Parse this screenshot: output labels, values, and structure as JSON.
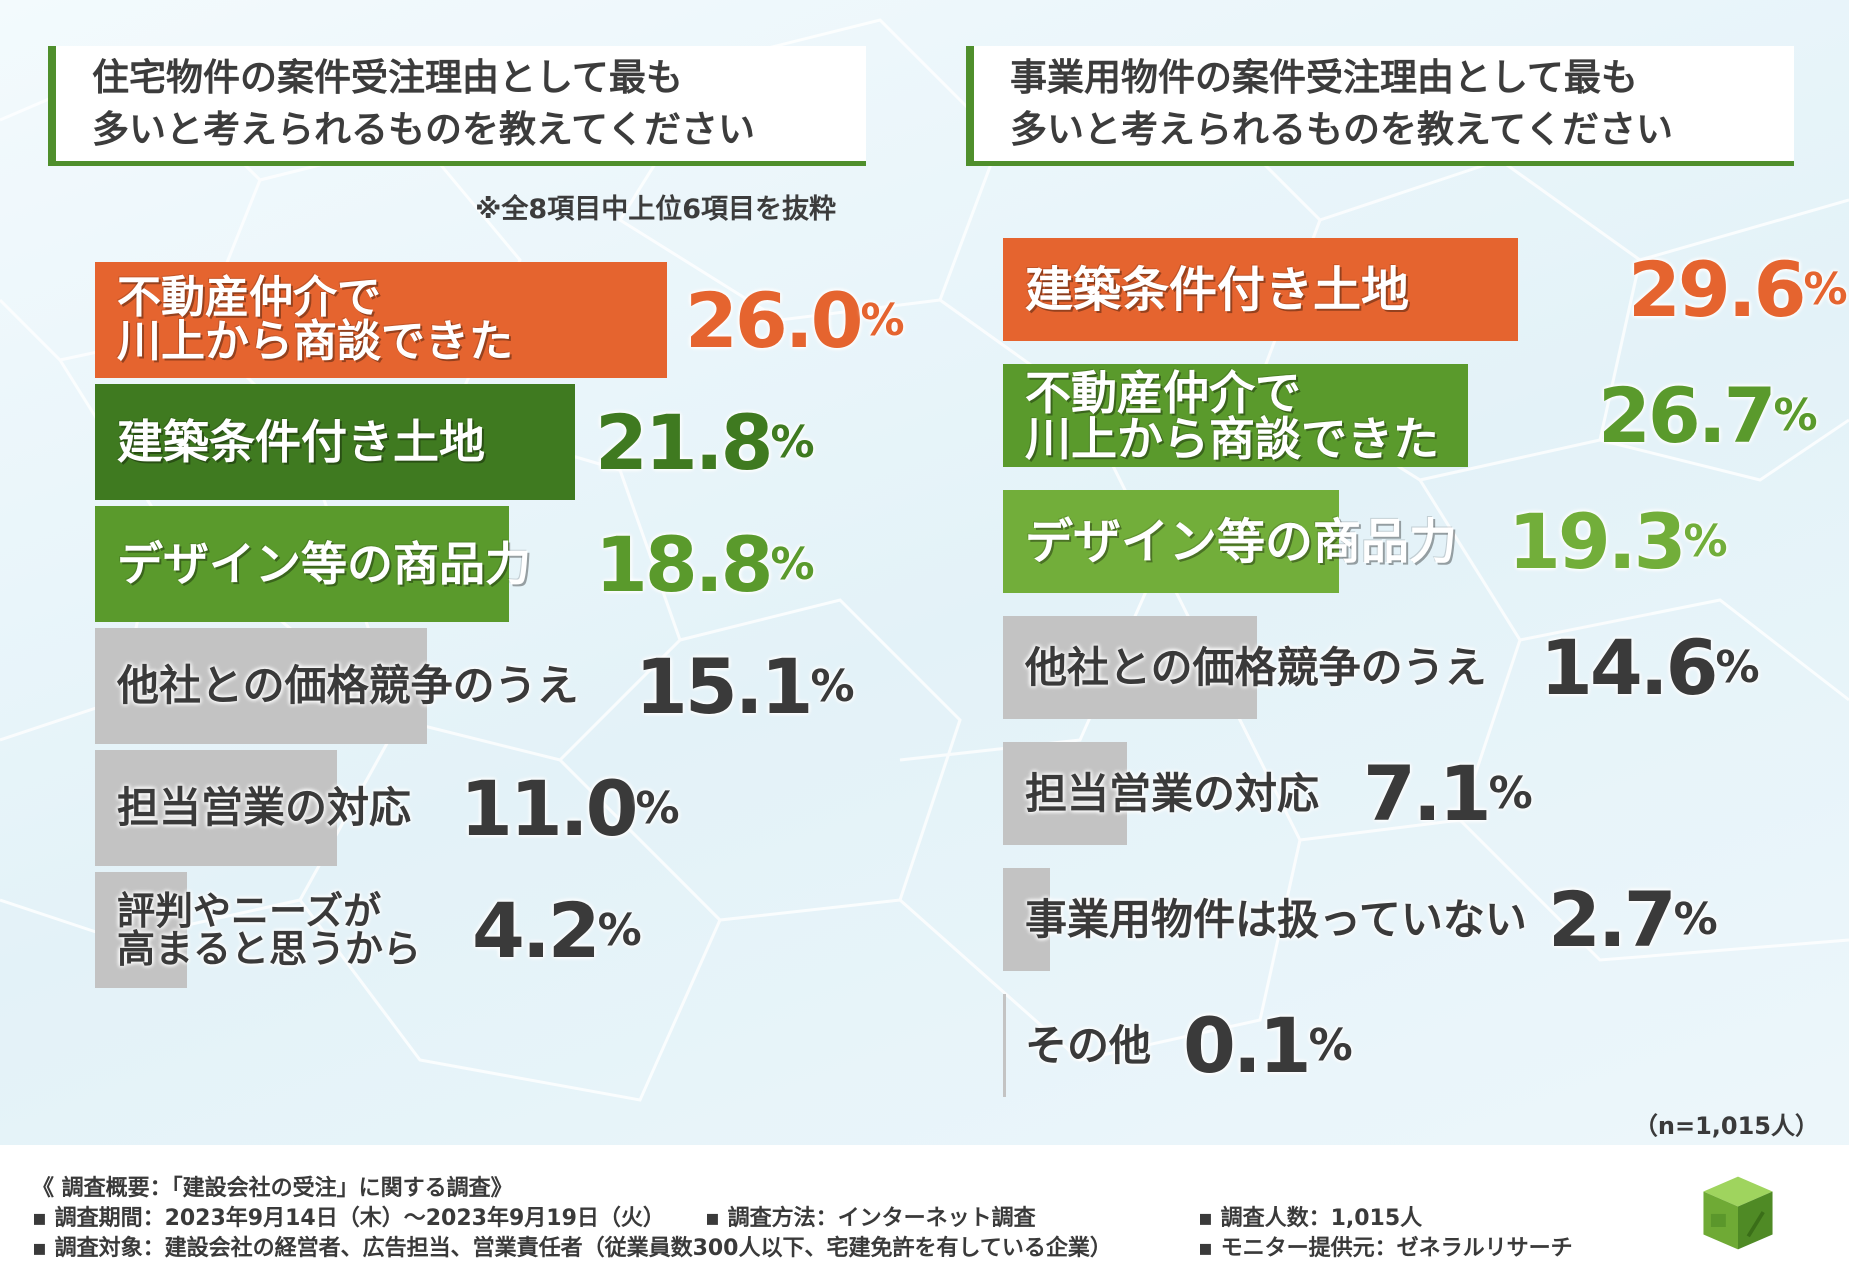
{
  "left": {
    "title_line1": "住宅物件の案件受注理由として最も",
    "title_line2": "多いと考えられるものを教えてください",
    "note": "※全8項目中上位6項目を抜粋"
  },
  "right": {
    "title_line1": "事業用物件の案件受注理由として最も",
    "title_line2": "多いと考えられるものを教えてください"
  },
  "sample_note": "（n=1,015人）",
  "colors": {
    "orange": "#e5642f",
    "dark_green": "#3f7a20",
    "mid_green": "#5a9a2c",
    "light_green": "#72ae3a",
    "gray": "#c3c3c3",
    "orange_text": "#e5642f"
  },
  "chart_data": [
    {
      "type": "bar",
      "orientation": "horizontal",
      "title": "住宅物件の案件受注理由として最も多いと考えられるものを教えてください",
      "unit": "%",
      "categories": [
        [
          "不動産仲介で",
          "川上から商談できた"
        ],
        [
          "建築条件付き土地"
        ],
        [
          "デザイン等の商品力"
        ],
        [
          "他社との価格競争のうえ"
        ],
        [
          "担当営業の対応"
        ],
        [
          "評判やニーズが",
          "高まると思うから"
        ]
      ],
      "values": [
        26.0,
        21.8,
        18.8,
        15.1,
        11.0,
        4.2
      ],
      "value_labels": [
        [
          "26.0",
          "%"
        ],
        [
          "21.8",
          "%"
        ],
        [
          "18.8",
          "%"
        ],
        [
          "15.1",
          "%"
        ],
        [
          "11.0",
          "%"
        ],
        [
          "4.2",
          "%"
        ]
      ],
      "colors": [
        "orange",
        "dark_green",
        "mid_green",
        "gray",
        "gray",
        "gray"
      ]
    },
    {
      "type": "bar",
      "orientation": "horizontal",
      "title": "事業用物件の案件受注理由として最も多いと考えられるものを教えてください",
      "unit": "%",
      "categories": [
        [
          "建築条件付き土地"
        ],
        [
          "不動産仲介で",
          "川上から商談できた"
        ],
        [
          "デザイン等の商品力"
        ],
        [
          "他社との価格競争のうえ"
        ],
        [
          "担当営業の対応"
        ],
        [
          "事業用物件は扱っていない"
        ],
        [
          "その他"
        ]
      ],
      "values": [
        29.6,
        26.7,
        19.3,
        14.6,
        7.1,
        2.7,
        0.1
      ],
      "value_labels": [
        [
          "29.6",
          "%"
        ],
        [
          "26.7",
          "%"
        ],
        [
          "19.3",
          "%"
        ],
        [
          "14.6",
          "%"
        ],
        [
          "7.1",
          "%"
        ],
        [
          "2.7",
          "%"
        ],
        [
          "0.1",
          "%"
        ]
      ],
      "colors": [
        "orange",
        "mid_green",
        "light_green",
        "gray",
        "gray",
        "gray",
        "gray"
      ]
    }
  ],
  "footer": {
    "heading": "《 調査概要：「建設会社の受注」に関する調査》",
    "period": "▪ 調査期間：2023年9月14日（木）～2023年9月19日（火）",
    "method": "▪ 調査方法：インターネット調査",
    "count": "▪ 調査人数：1,015人",
    "target": "▪ 調査対象：建設会社の経営者、広告担当、営業責任者（従業員数300人以下、宅建免許を有している企業）",
    "provider": "▪ モニター提供元：ゼネラルリサーチ"
  },
  "logo_icon": "green-cube-logo-icon"
}
